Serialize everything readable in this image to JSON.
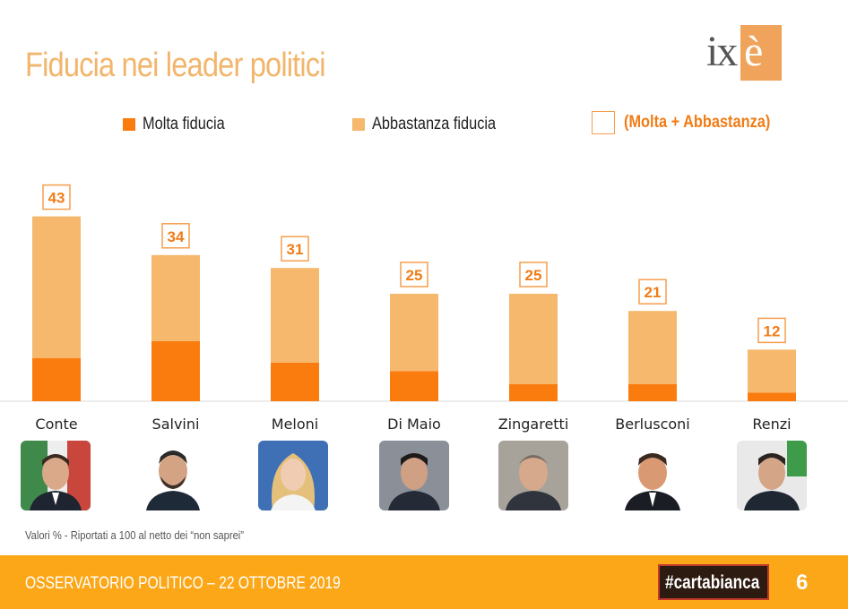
{
  "header": {
    "title": "Fiducia nei leader politici",
    "logo_text": "ixè"
  },
  "legend": {
    "molta": "Molta fiducia",
    "abbastanza": "Abbastanza fiducia",
    "total": "(Molta + Abbastanza)"
  },
  "colors": {
    "molta": "#fb7c0e",
    "abbastanza": "#f5b86c",
    "total_box": "#f59e4f",
    "title": "#f2b56c",
    "footer": "#fba718"
  },
  "chart_data": {
    "type": "bar",
    "stacked": true,
    "categories": [
      "Conte",
      "Salvini",
      "Meloni",
      "Di Maio",
      "Zingaretti",
      "Berlusconi",
      "Renzi"
    ],
    "series": [
      {
        "name": "Molta fiducia",
        "values": [
          10,
          14,
          9,
          7,
          4,
          4,
          2
        ]
      },
      {
        "name": "Abbastanza fiducia",
        "values": [
          33,
          20,
          22,
          18,
          21,
          17,
          10
        ]
      }
    ],
    "totals": [
      43,
      34,
      31,
      25,
      25,
      21,
      12
    ],
    "ylim": [
      0,
      50
    ],
    "grid": false,
    "legend_position": "top"
  },
  "footnote": "Valori % - Riportati a 100 al netto dei “non saprei”",
  "footer": {
    "left": "OSSERVATORIO POLITICO – 22 OTTOBRE 2019",
    "badge": "#cartabianca",
    "page": "6"
  }
}
